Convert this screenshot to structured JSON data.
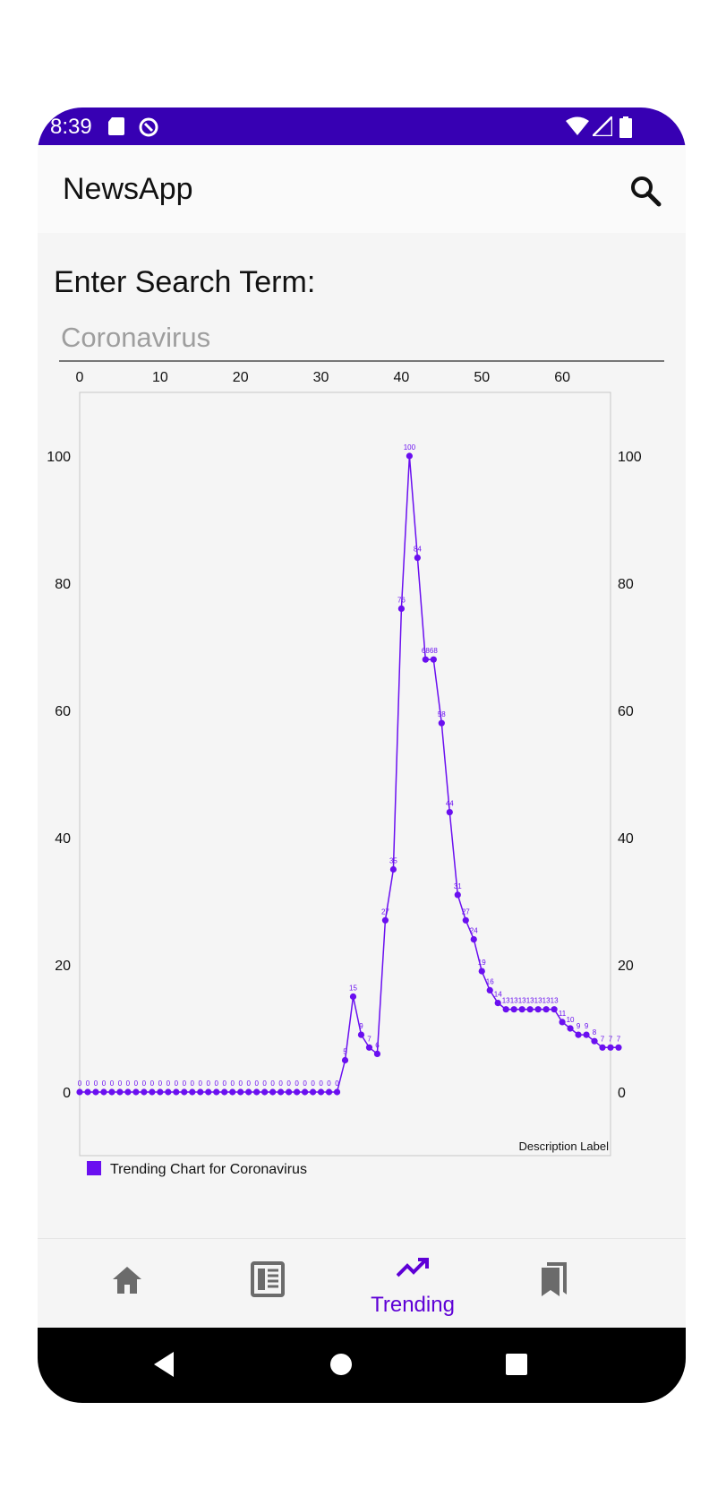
{
  "status_bar": {
    "time": "8:39"
  },
  "app_bar": {
    "title": "NewsApp"
  },
  "search": {
    "label": "Enter Search Term:",
    "placeholder": "Coronavirus"
  },
  "colors": {
    "accent": "#6200ee",
    "status_bar": "#3700b3",
    "line": "#6a0ff0"
  },
  "chart_data": {
    "type": "line",
    "x_tick_labels": [
      "0",
      "10",
      "20",
      "30",
      "40",
      "50",
      "60"
    ],
    "y_tick_labels": [
      "0",
      "20",
      "40",
      "60",
      "80",
      "100"
    ],
    "xlim": [
      0,
      66
    ],
    "ylim": [
      -10,
      110
    ],
    "description_label": "Description Label",
    "legend": "Trending Chart for Coronavirus",
    "series": [
      {
        "name": "Trending Chart for Coronavirus",
        "values": [
          0,
          0,
          0,
          0,
          0,
          0,
          0,
          0,
          0,
          0,
          0,
          0,
          0,
          0,
          0,
          0,
          0,
          0,
          0,
          0,
          0,
          0,
          0,
          0,
          0,
          0,
          0,
          0,
          0,
          0,
          0,
          0,
          0,
          5,
          15,
          9,
          7,
          6,
          27,
          35,
          76,
          100,
          84,
          68,
          68,
          58,
          44,
          31,
          27,
          24,
          19,
          16,
          14,
          13,
          13,
          13,
          13,
          13,
          13,
          13,
          11,
          10,
          9,
          9,
          8,
          7,
          7,
          7
        ]
      }
    ]
  },
  "bottom_nav": {
    "items": [
      {
        "icon": "home-icon"
      },
      {
        "icon": "newspaper-icon"
      },
      {
        "icon": "trending-icon",
        "label": "Trending"
      },
      {
        "icon": "bookmarks-icon"
      }
    ]
  }
}
